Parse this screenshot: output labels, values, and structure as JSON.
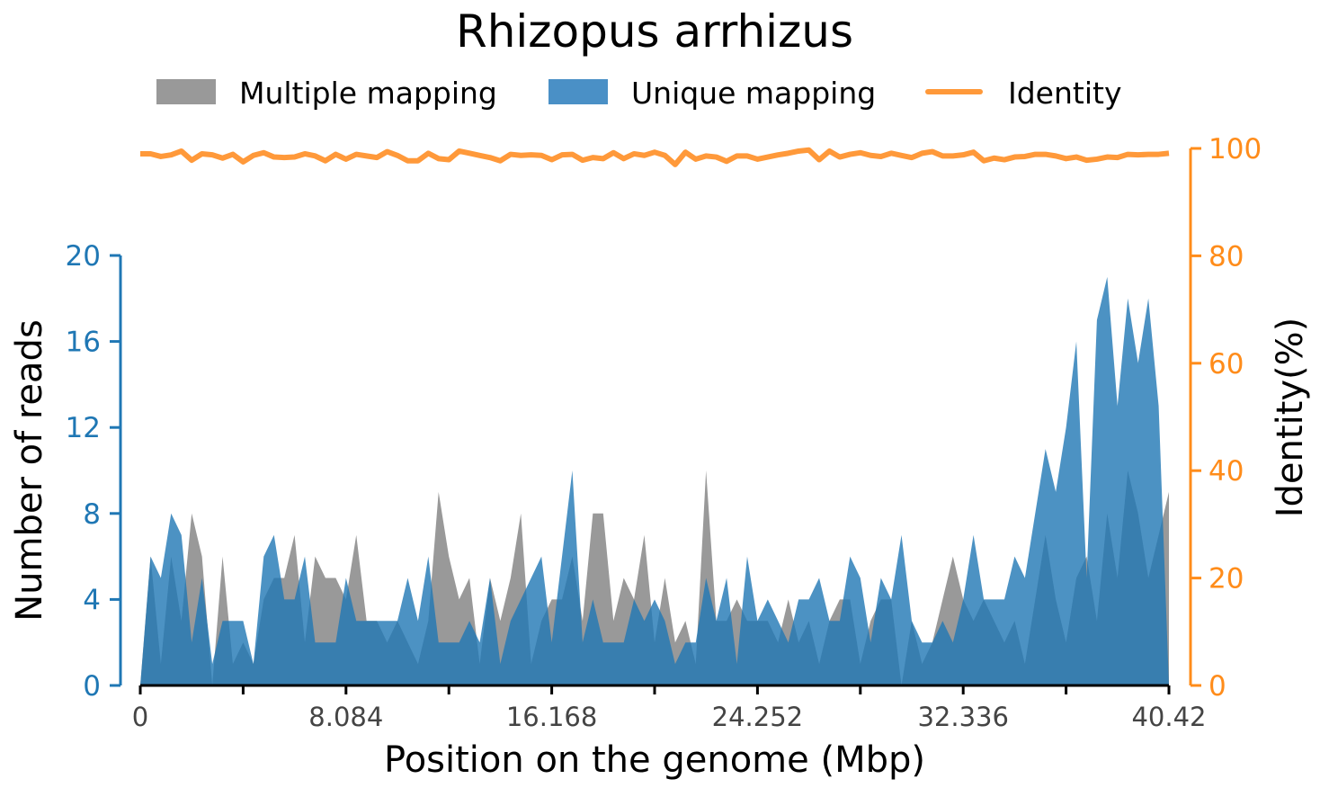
{
  "chart_data": {
    "type": "area",
    "title": "Rhizopus arrhizus",
    "xlabel": "Position on the genome (Mbp)",
    "ylabel": "Number of reads",
    "y2label": "Identity(%)",
    "xlim": [
      0,
      40.42
    ],
    "ylim": [
      0,
      20
    ],
    "y2lim": [
      0,
      100
    ],
    "x_ticks": [
      "0",
      "8.084",
      "16.168",
      "24.252",
      "32.336",
      "40.42"
    ],
    "y_ticks": [
      "0",
      "4",
      "8",
      "12",
      "16",
      "20"
    ],
    "y2_ticks": [
      "0",
      "20",
      "40",
      "60",
      "80",
      "100"
    ],
    "legend": {
      "position": "top-center"
    },
    "colors": {
      "multiple": "#999999",
      "unique": "#1f77b4",
      "identity": "#ff993a",
      "left_axis": "#1f77b4",
      "right_axis": "#ff8c1a"
    },
    "x": [
      0.0,
      0.4042,
      0.8084,
      1.2126,
      1.6168,
      2.021,
      2.4252,
      2.8294,
      3.2336,
      3.6378,
      4.042,
      4.4462,
      4.8504,
      5.2546,
      5.6588,
      6.063,
      6.4672,
      6.8714,
      7.2756,
      7.6798,
      8.084,
      8.4882,
      8.8924,
      9.2966,
      9.7008,
      10.105,
      10.5092,
      10.9134,
      11.3176,
      11.7218,
      12.126,
      12.5302,
      12.9344,
      13.3386,
      13.7428,
      14.147,
      14.5512,
      14.9554,
      15.3596,
      15.7638,
      16.168,
      16.5722,
      16.9764,
      17.3806,
      17.7848,
      18.189,
      18.5932,
      18.9974,
      19.4016,
      19.8058,
      20.21,
      20.6142,
      21.0184,
      21.4226,
      21.8268,
      22.231,
      22.6352,
      23.0394,
      23.4436,
      23.8478,
      24.252,
      24.6562,
      25.0604,
      25.4646,
      25.8688,
      26.273,
      26.6772,
      27.0814,
      27.4856,
      27.8898,
      28.294,
      28.6982,
      29.1024,
      29.5066,
      29.9108,
      30.315,
      30.7192,
      31.1234,
      31.5276,
      31.9318,
      32.336,
      32.7402,
      33.1444,
      33.5486,
      33.9528,
      34.357,
      34.7612,
      35.1654,
      35.5696,
      35.9738,
      36.378,
      36.7822,
      37.1864,
      37.5906,
      37.9948,
      38.399,
      38.8032,
      39.2074,
      39.6116,
      40.0158,
      40.42
    ],
    "series": [
      {
        "name": "Multiple mapping",
        "values": [
          0,
          6,
          1,
          6,
          3,
          8,
          6,
          0,
          6,
          1,
          2,
          1,
          4,
          5,
          5,
          7,
          2,
          6,
          5,
          5,
          4,
          7,
          3,
          3,
          2,
          3,
          2,
          1,
          3,
          9,
          6,
          4,
          5,
          1,
          5,
          3,
          5,
          8,
          1,
          3,
          4,
          4,
          6,
          3,
          8,
          8,
          3,
          5,
          4,
          7,
          2,
          5,
          2,
          3,
          1,
          10,
          3,
          3,
          4,
          3,
          3,
          3,
          2,
          4,
          2,
          3,
          1,
          3,
          4,
          4,
          1,
          3,
          4,
          4,
          0,
          3,
          1,
          2,
          4,
          6,
          4,
          3,
          4,
          3,
          2,
          3,
          1,
          4,
          7,
          4,
          2,
          5,
          6,
          3,
          8,
          5,
          10,
          8,
          5,
          7,
          9
        ]
      },
      {
        "name": "Unique mapping",
        "values": [
          0,
          6,
          5,
          8,
          7,
          2,
          5,
          1,
          3,
          3,
          3,
          1,
          6,
          7,
          4,
          4,
          6,
          2,
          2,
          2,
          5,
          3,
          3,
          3,
          3,
          3,
          5,
          3,
          6,
          2,
          2,
          2,
          3,
          2,
          5,
          1,
          3,
          4,
          5,
          6,
          2,
          6,
          10,
          2,
          4,
          2,
          2,
          2,
          4,
          3,
          4,
          3,
          1,
          2,
          2,
          5,
          3,
          5,
          1,
          6,
          3,
          4,
          3,
          2,
          4,
          4,
          5,
          3,
          3,
          6,
          5,
          2,
          5,
          4,
          7,
          3,
          2,
          2,
          3,
          2,
          4,
          7,
          4,
          4,
          4,
          6,
          5,
          8,
          11,
          9,
          12,
          16,
          5,
          17,
          19,
          13,
          18,
          15,
          18,
          13,
          0
        ]
      },
      {
        "name": "Identity",
        "axis": "right",
        "values": [
          99,
          99,
          98.5,
          98.8,
          99.5,
          97.8,
          99,
          98.8,
          98.2,
          98.9,
          97.5,
          98.7,
          99.2,
          98.4,
          98.3,
          98.4,
          99,
          98.6,
          97.7,
          98.9,
          98,
          98.9,
          98.6,
          98.3,
          99.4,
          98.7,
          97.7,
          97.7,
          99.1,
          98.1,
          97.9,
          99.5,
          99.1,
          98.7,
          98.3,
          97.7,
          98.9,
          98.7,
          98.8,
          98.7,
          97.9,
          98.8,
          98.9,
          97.8,
          98.3,
          98.1,
          99.2,
          98.1,
          99,
          98.7,
          99.3,
          98.7,
          97,
          99.3,
          98,
          98.6,
          98.4,
          97.6,
          98.6,
          98.6,
          98,
          98.4,
          98.8,
          99.1,
          99.5,
          99.7,
          97.9,
          99.5,
          98.4,
          98.9,
          99.2,
          98.7,
          98.5,
          99.1,
          98.7,
          98.3,
          99.1,
          99.4,
          98.6,
          98.6,
          98.8,
          99.3,
          97.7,
          98.2,
          97.9,
          98.4,
          98.5,
          98.9,
          98.9,
          98.6,
          98.1,
          98.4,
          97.8,
          98,
          98.4,
          98.3,
          98.9,
          98.8,
          98.9,
          98.9,
          99.1
        ]
      }
    ]
  }
}
